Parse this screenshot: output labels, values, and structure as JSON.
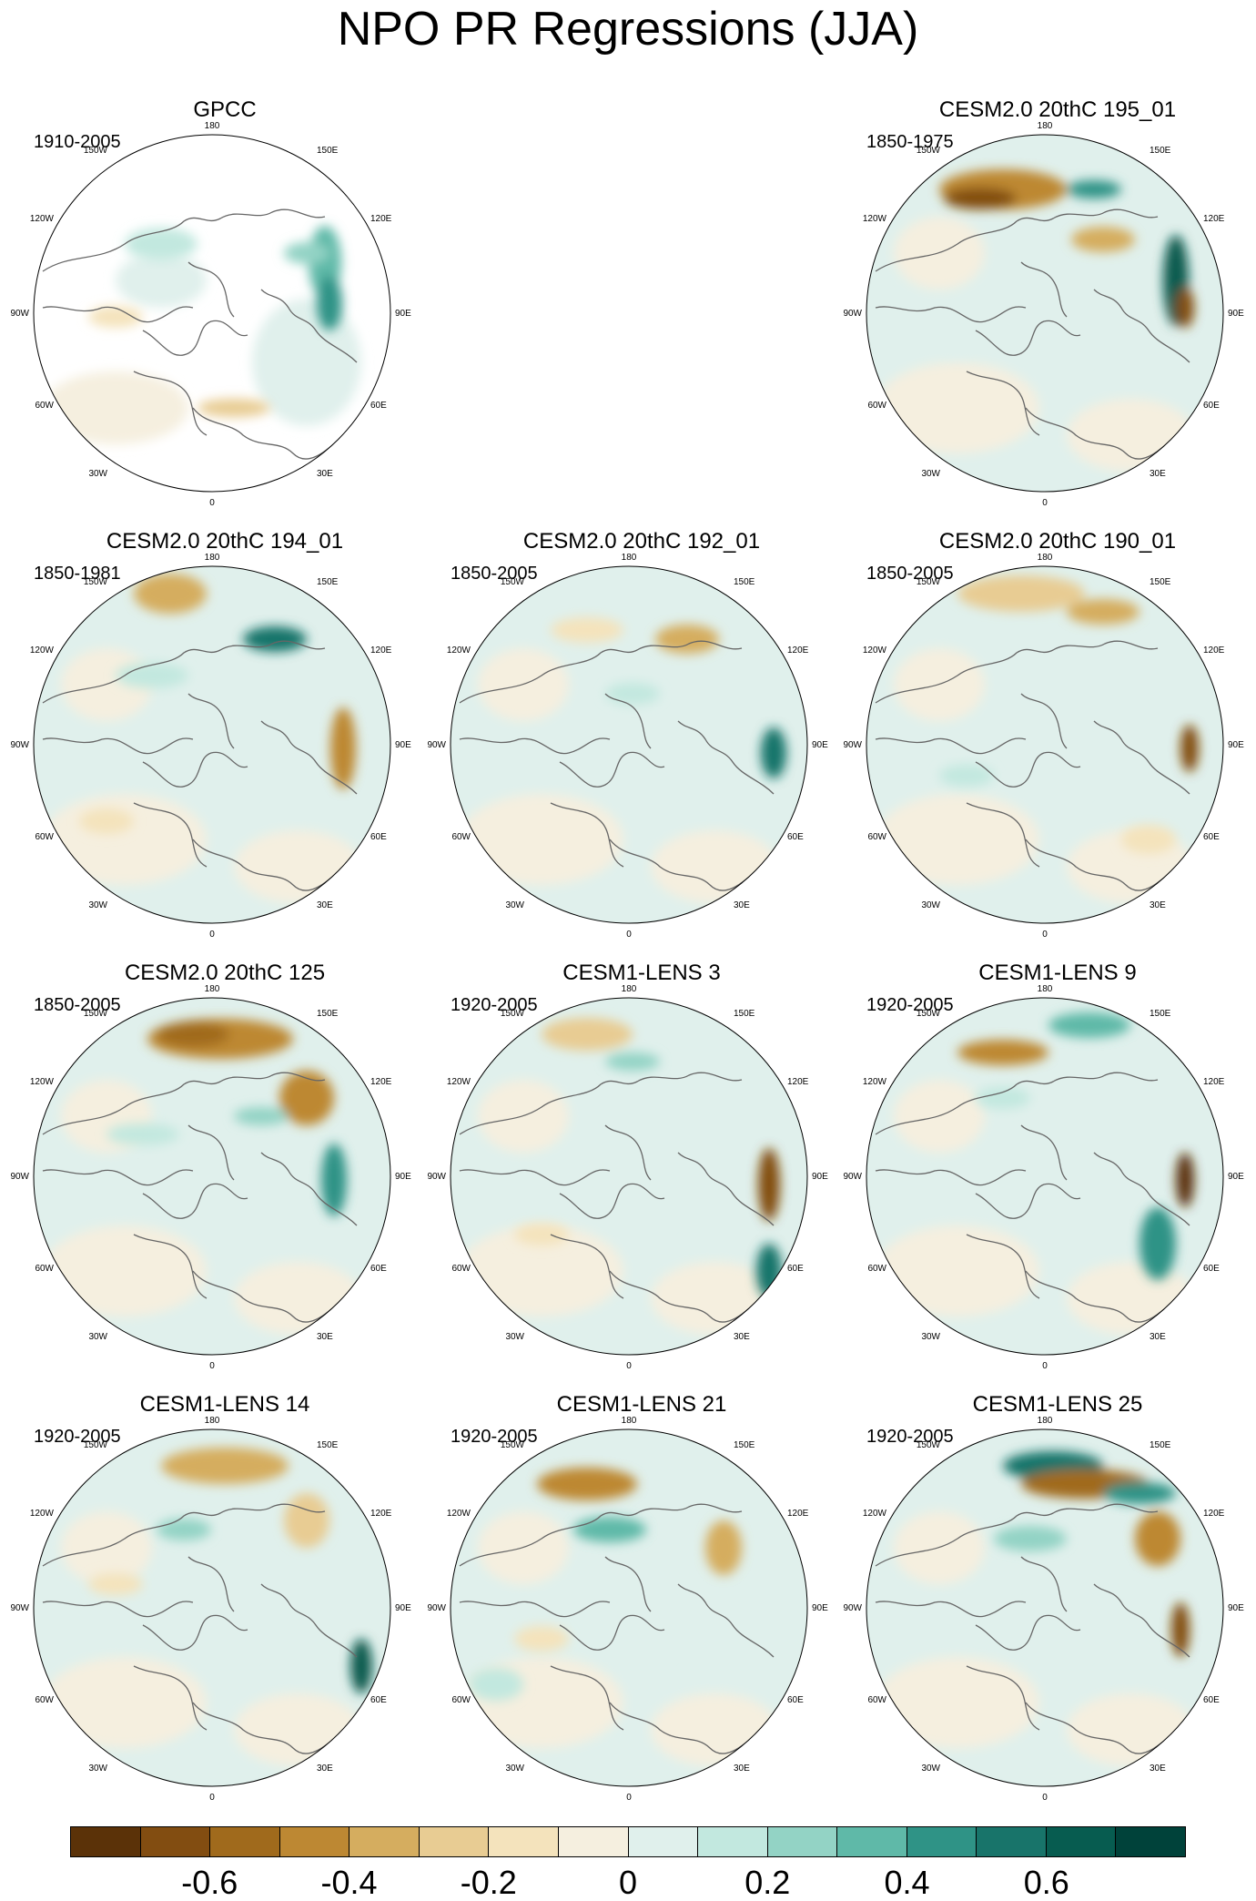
{
  "title": "NPO PR Regressions (JJA)",
  "map_labels": {
    "top": "180",
    "top_left": "150W",
    "top_right": "150E",
    "upper_left": "120W",
    "upper_right": "120E",
    "left": "90W",
    "right": "90E",
    "lower_left": "60W",
    "lower_right": "60E",
    "bottom_left": "30W",
    "bottom_right": "30E",
    "bottom": "0"
  },
  "panels": [
    {
      "title": "GPCC",
      "years": "1910-2005"
    },
    {
      "title": "CESM2.0 20thC 195_01",
      "years": "1850-1975"
    },
    {
      "title": "CESM2.0 20thC 194_01",
      "years": "1850-1981"
    },
    {
      "title": "CESM2.0 20thC 192_01",
      "years": "1850-2005"
    },
    {
      "title": "CESM2.0 20thC 190_01",
      "years": "1850-2005"
    },
    {
      "title": "CESM2.0 20thC 125",
      "years": "1850-2005"
    },
    {
      "title": "CESM1-LENS 3",
      "years": "1920-2005"
    },
    {
      "title": "CESM1-LENS 9",
      "years": "1920-2005"
    },
    {
      "title": "CESM1-LENS 14",
      "years": "1920-2005"
    },
    {
      "title": "CESM1-LENS 21",
      "years": "1920-2005"
    },
    {
      "title": "CESM1-LENS 25",
      "years": "1920-2005"
    }
  ],
  "colorbar": {
    "colors": [
      "#5b3208",
      "#824d11",
      "#a06a1c",
      "#bd8833",
      "#d5ad5f",
      "#e8cc93",
      "#f4e3bc",
      "#f5efdf",
      "#e0f0ec",
      "#c2e8df",
      "#93d3c5",
      "#5fb9a8",
      "#2f9386",
      "#18746a",
      "#075c50",
      "#00423a"
    ],
    "tick_labels": [
      "-0.6",
      "-0.4",
      "-0.2",
      "0",
      "0.2",
      "0.4",
      "0.6"
    ]
  }
}
